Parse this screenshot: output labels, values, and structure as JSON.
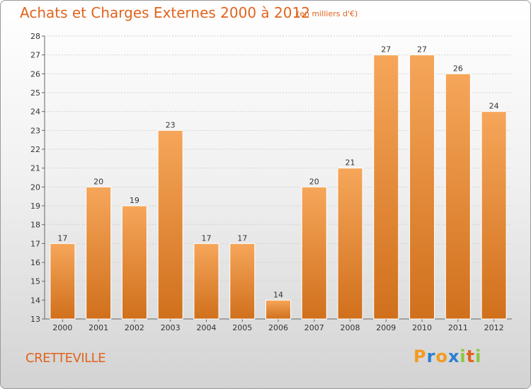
{
  "header": {
    "title": "Achats et Charges Externes 2000 à 2012",
    "subtitle": "(en milliers d'€)"
  },
  "footer": {
    "commune": "CRETTEVILLE",
    "logo_letters": [
      "P",
      "r",
      "o",
      "x",
      "i",
      "t",
      "i"
    ],
    "logo_colors": [
      "#f39a1f",
      "#2a7fd0",
      "#f39a1f",
      "#2a7fd0",
      "#8cc63f",
      "#e0641d",
      "#8cc63f"
    ]
  },
  "chart_data": {
    "type": "bar",
    "categories": [
      "2000",
      "2001",
      "2002",
      "2003",
      "2004",
      "2005",
      "2006",
      "2007",
      "2008",
      "2009",
      "2010",
      "2011",
      "2012"
    ],
    "values": [
      17,
      20,
      19,
      23,
      17,
      17,
      14,
      20,
      21,
      27,
      27,
      26,
      24
    ],
    "ylim": [
      13,
      28
    ],
    "yticks": [
      13,
      14,
      15,
      16,
      17,
      18,
      19,
      20,
      21,
      22,
      23,
      24,
      25,
      26,
      27,
      28
    ],
    "grid": true,
    "bar_color_top": "#f6a65a",
    "bar_color_bottom": "#d0701c"
  }
}
